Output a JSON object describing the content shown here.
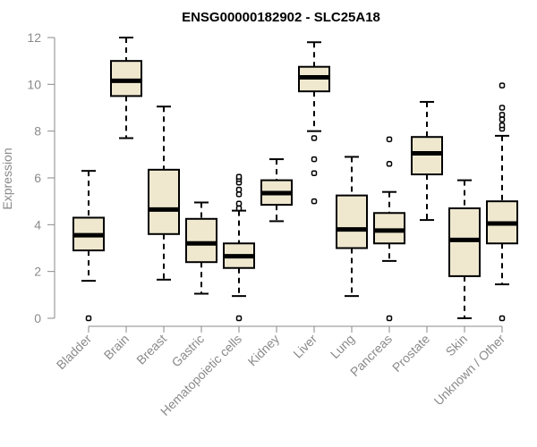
{
  "chart_data": {
    "type": "boxplot",
    "title": "ENSG00000182902 - SLC25A18",
    "xlabel": "",
    "ylabel": "Expression",
    "ylim": [
      0,
      12
    ],
    "yticks": [
      0,
      2,
      4,
      6,
      8,
      10,
      12
    ],
    "categories": [
      "Bladder",
      "Brain",
      "Breast",
      "Gastric",
      "Hematopoietic cells",
      "Kidney",
      "Liver",
      "Lung",
      "Pancreas",
      "Prostate",
      "Skin",
      "Unknown / Other"
    ],
    "boxes": [
      {
        "name": "Bladder",
        "whislo": 1.6,
        "q1": 2.9,
        "med": 3.55,
        "q3": 4.3,
        "whishi": 6.3,
        "fliers": [
          0.0
        ]
      },
      {
        "name": "Brain",
        "whislo": 7.7,
        "q1": 9.5,
        "med": 10.15,
        "q3": 11.0,
        "whishi": 12.0,
        "fliers": []
      },
      {
        "name": "Breast",
        "whislo": 1.65,
        "q1": 3.6,
        "med": 4.65,
        "q3": 6.35,
        "whishi": 9.05,
        "fliers": []
      },
      {
        "name": "Gastric",
        "whislo": 1.05,
        "q1": 2.4,
        "med": 3.2,
        "q3": 4.25,
        "whishi": 4.95,
        "fliers": []
      },
      {
        "name": "Hematopoietic cells",
        "whislo": 0.95,
        "q1": 2.15,
        "med": 2.65,
        "q3": 3.2,
        "whishi": 4.6,
        "fliers": [
          0.0,
          4.7,
          4.9,
          5.3,
          5.5,
          5.8,
          5.95,
          6.05
        ]
      },
      {
        "name": "Kidney",
        "whislo": 4.15,
        "q1": 4.85,
        "med": 5.35,
        "q3": 5.9,
        "whishi": 6.8,
        "fliers": []
      },
      {
        "name": "Liver",
        "whislo": 8.0,
        "q1": 9.7,
        "med": 10.3,
        "q3": 10.75,
        "whishi": 11.8,
        "fliers": [
          5.0,
          6.2,
          6.8,
          7.7
        ]
      },
      {
        "name": "Lung",
        "whislo": 0.95,
        "q1": 3.0,
        "med": 3.8,
        "q3": 5.25,
        "whishi": 6.9,
        "fliers": []
      },
      {
        "name": "Pancreas",
        "whislo": 2.45,
        "q1": 3.2,
        "med": 3.75,
        "q3": 4.5,
        "whishi": 5.4,
        "fliers": [
          0.0,
          6.6,
          7.65
        ]
      },
      {
        "name": "Prostate",
        "whislo": 4.2,
        "q1": 6.15,
        "med": 7.05,
        "q3": 7.75,
        "whishi": 9.25,
        "fliers": []
      },
      {
        "name": "Skin",
        "whislo": 0.0,
        "q1": 1.8,
        "med": 3.35,
        "q3": 4.7,
        "whishi": 5.9,
        "fliers": []
      },
      {
        "name": "Unknown / Other",
        "whislo": 1.45,
        "q1": 3.2,
        "med": 4.05,
        "q3": 5.0,
        "whishi": 7.8,
        "fliers": [
          0.0,
          8.1,
          8.25,
          8.5,
          8.7,
          9.0,
          9.95
        ]
      }
    ]
  },
  "colors": {
    "box_fill": "#efe8cf",
    "axis": "#8a8a8a"
  }
}
